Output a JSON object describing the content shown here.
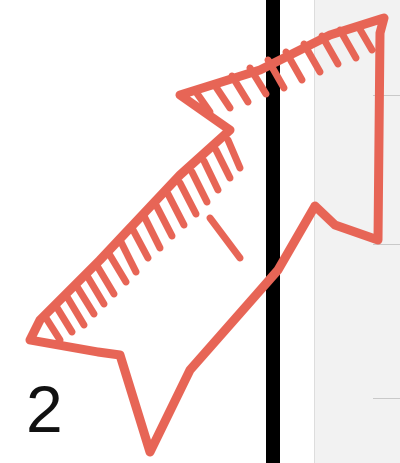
{
  "step": {
    "number": "2"
  },
  "annotation": {
    "icon": "hand-drawn-arrow-icon",
    "direction": "up-right",
    "color": "#e76556"
  },
  "colors": {
    "divider": "#000000",
    "panel": "#f2f2f2"
  }
}
